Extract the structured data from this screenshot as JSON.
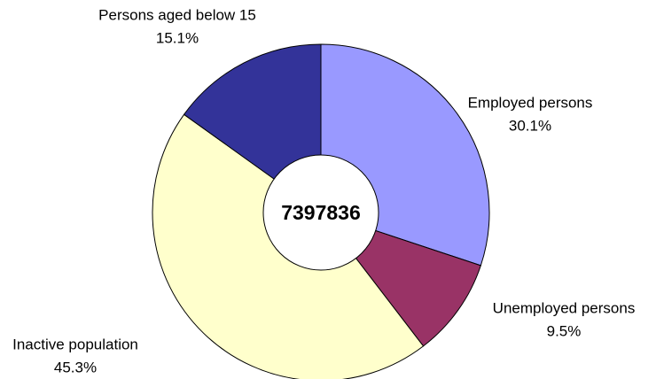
{
  "chart_data": {
    "type": "donut",
    "categories": [
      "Employed persons",
      "Unemployed persons",
      "Inactive population",
      "Persons aged below 15"
    ],
    "values": [
      30.1,
      9.5,
      45.3,
      15.1
    ],
    "value_labels": [
      "30.1%",
      "9.5%",
      "45.3%",
      "15.1%"
    ],
    "colors": [
      "#9999ff",
      "#993366",
      "#ffffcc",
      "#333399"
    ],
    "center_label": "7397836"
  }
}
